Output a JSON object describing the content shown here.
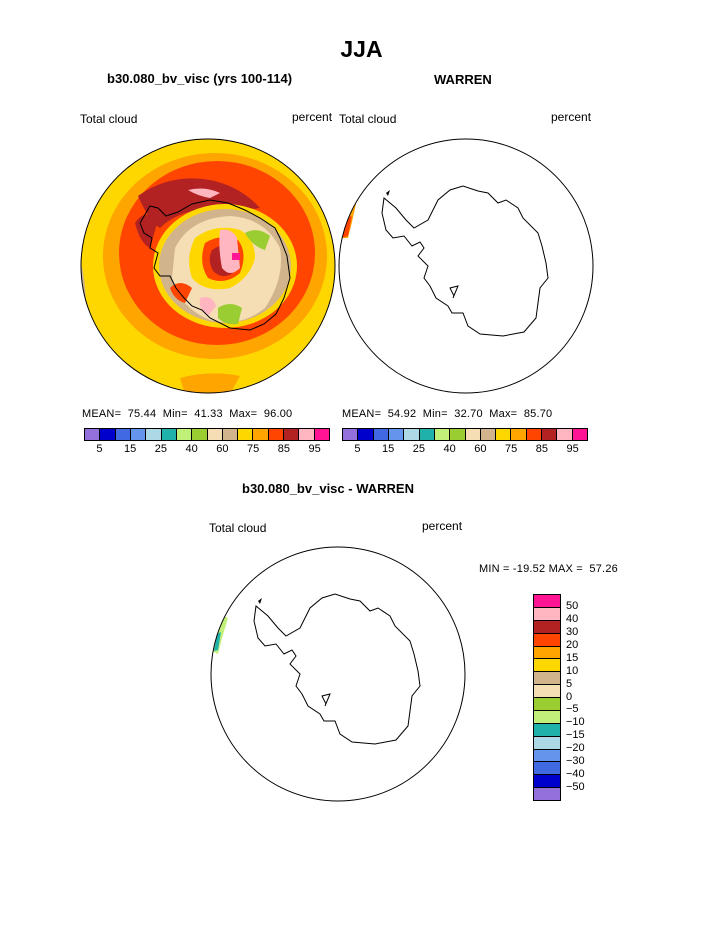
{
  "title": "JJA",
  "panels": {
    "model": {
      "title": "b30.080_bv_visc (yrs 100-114)",
      "left_label": "Total cloud",
      "right_label": "percent",
      "stats": {
        "mean_label": "MEAN=",
        "mean": "75.44",
        "min_label": "Min=",
        "min": "41.33",
        "max_label": "Max=",
        "max": "96.00"
      }
    },
    "obs": {
      "title": "WARREN",
      "left_label": "Total cloud",
      "right_label": "percent",
      "stats": {
        "mean_label": "MEAN=",
        "mean": "54.92",
        "min_label": "Min=",
        "min": "32.70",
        "max_label": "Max=",
        "max": "85.70"
      }
    },
    "diff": {
      "title": "b30.080_bv_visc - WARREN",
      "left_label": "Total cloud",
      "right_label": "percent",
      "stats": {
        "min_label": "MIN =",
        "min": "-19.52",
        "max_label": "MAX =",
        "max": "57.26"
      }
    }
  },
  "colorbar_abs": {
    "colors": [
      "#9370db",
      "#0000cd",
      "#4169e1",
      "#6495ed",
      "#add8e6",
      "#20b2aa",
      "#c0f07a",
      "#9acd32",
      "#f5deb3",
      "#d2b48c",
      "#ffd700",
      "#ffa500",
      "#ff4500",
      "#b22222",
      "#ffb6c1",
      "#ff1493"
    ],
    "tick_labels": [
      "5",
      "15",
      "25",
      "40",
      "60",
      "75",
      "85",
      "95"
    ]
  },
  "colorbar_diff": {
    "colors": [
      "#ff1493",
      "#ffb6c1",
      "#b22222",
      "#ff4500",
      "#ffa500",
      "#ffd700",
      "#d2b48c",
      "#f5deb3",
      "#9acd32",
      "#c0f07a",
      "#20b2aa",
      "#add8e6",
      "#6495ed",
      "#4169e1",
      "#0000cd",
      "#9370db"
    ],
    "tick_labels": [
      "50",
      "40",
      "30",
      "20",
      "15",
      "10",
      "5",
      "0",
      "−5",
      "−10",
      "−15",
      "−20",
      "−30",
      "−40",
      "−50"
    ]
  }
}
